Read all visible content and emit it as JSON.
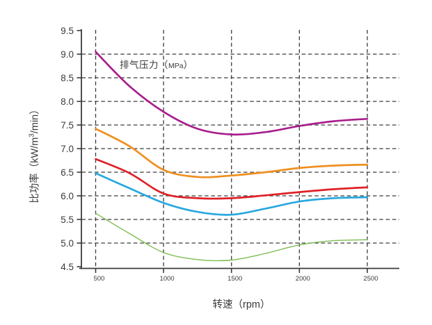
{
  "chart_data": {
    "type": "line",
    "annotation": {
      "prefix": "排气压力（",
      "unit": "MPa",
      "suffix": "）"
    },
    "xlabel": "转速（rpm）",
    "ylabel": {
      "pre": "比功率（kW/m",
      "sup": "3",
      "post": "/min）"
    },
    "x_tick_labels": [
      "500",
      "1000",
      "1500",
      "2000",
      "2500"
    ],
    "y_tick_labels": [
      "4.5",
      "5.0",
      "5.5",
      "6.0",
      "6.5",
      "7.0",
      "7.5",
      "8.0",
      "8.5",
      "9.0",
      "9.5"
    ],
    "xlim": [
      500,
      2500
    ],
    "ylim": [
      4.5,
      9.5
    ],
    "grid_style": "dashed",
    "legend_position": "top-inside",
    "colors": {
      "grid": "#3a3a3a",
      "axis": "#3a3a3a",
      "text": "#3a3a3a"
    },
    "x": [
      500,
      750,
      1000,
      1250,
      1500,
      1750,
      2000,
      2250,
      2500
    ],
    "series": [
      {
        "name": "magenta",
        "color": "#a81e8c",
        "width": 2.7,
        "values": [
          9.05,
          8.32,
          7.78,
          7.42,
          7.3,
          7.35,
          7.48,
          7.58,
          7.63
        ]
      },
      {
        "name": "orange",
        "color": "#ef8f20",
        "width": 2.7,
        "values": [
          7.42,
          7.05,
          6.55,
          6.4,
          6.43,
          6.5,
          6.59,
          6.64,
          6.66
        ]
      },
      {
        "name": "red",
        "color": "#df2026",
        "width": 2.7,
        "values": [
          6.78,
          6.48,
          6.05,
          5.95,
          5.95,
          6.01,
          6.08,
          6.14,
          6.18
        ]
      },
      {
        "name": "blue",
        "color": "#29a8df",
        "width": 2.7,
        "values": [
          6.48,
          6.16,
          5.85,
          5.66,
          5.6,
          5.73,
          5.88,
          5.95,
          5.97
        ]
      },
      {
        "name": "green",
        "color": "#7cbc50",
        "width": 1.4,
        "values": [
          5.63,
          5.2,
          4.8,
          4.65,
          4.64,
          4.78,
          4.96,
          5.05,
          5.07
        ]
      }
    ]
  }
}
